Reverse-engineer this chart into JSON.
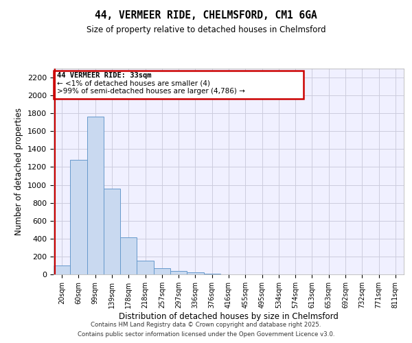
{
  "title": "44, VERMEER RIDE, CHELMSFORD, CM1 6GA",
  "subtitle": "Size of property relative to detached houses in Chelmsford",
  "xlabel": "Distribution of detached houses by size in Chelmsford",
  "ylabel": "Number of detached properties",
  "categories": [
    "20sqm",
    "60sqm",
    "99sqm",
    "139sqm",
    "178sqm",
    "218sqm",
    "257sqm",
    "297sqm",
    "336sqm",
    "376sqm",
    "416sqm",
    "455sqm",
    "495sqm",
    "534sqm",
    "574sqm",
    "613sqm",
    "653sqm",
    "692sqm",
    "732sqm",
    "771sqm",
    "811sqm"
  ],
  "values": [
    100,
    1280,
    1760,
    960,
    415,
    150,
    70,
    40,
    20,
    5,
    2,
    1,
    0,
    0,
    0,
    0,
    0,
    0,
    0,
    0,
    0
  ],
  "bar_color": "#c9d9f0",
  "bar_edge_color": "#6699cc",
  "ylim": [
    0,
    2300
  ],
  "yticks": [
    0,
    200,
    400,
    600,
    800,
    1000,
    1200,
    1400,
    1600,
    1800,
    2000,
    2200
  ],
  "property_line_color": "#cc0000",
  "annotation_line1": "44 VERMEER RIDE: 33sqm",
  "annotation_line2": "← <1% of detached houses are smaller (4)",
  "annotation_line3": ">99% of semi-detached houses are larger (4,786) →",
  "annotation_box_color": "#cc0000",
  "footer1": "Contains HM Land Registry data © Crown copyright and database right 2025.",
  "footer2": "Contains public sector information licensed under the Open Government Licence v3.0.",
  "background_color": "#f0f0ff",
  "grid_color": "#ccccdd"
}
